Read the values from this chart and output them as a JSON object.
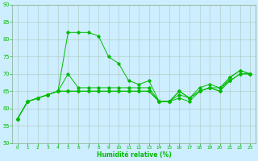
{
  "xlabel": "Humidité relative (%)",
  "background_color": "#cceeff",
  "grid_color": "#aaccaa",
  "line_color": "#00bb00",
  "xlim": [
    -0.5,
    23.5
  ],
  "ylim": [
    50,
    90
  ],
  "yticks": [
    50,
    55,
    60,
    65,
    70,
    75,
    80,
    85,
    90
  ],
  "xticks": [
    0,
    1,
    2,
    3,
    4,
    5,
    6,
    7,
    8,
    9,
    10,
    11,
    12,
    13,
    14,
    15,
    16,
    17,
    18,
    19,
    20,
    21,
    22,
    23
  ],
  "line1": [
    57,
    62,
    63,
    64,
    65,
    82,
    82,
    82,
    81,
    75,
    73,
    68,
    67,
    68,
    62,
    62,
    65,
    63,
    65,
    66,
    65,
    69,
    71,
    70
  ],
  "line2": [
    57,
    62,
    63,
    64,
    65,
    70,
    66,
    66,
    66,
    66,
    66,
    66,
    66,
    66,
    62,
    62,
    65,
    63,
    66,
    67,
    66,
    69,
    71,
    70
  ],
  "line3": [
    57,
    62,
    63,
    64,
    65,
    65,
    65,
    65,
    65,
    65,
    65,
    65,
    65,
    65,
    62,
    62,
    64,
    63,
    65,
    66,
    66,
    68,
    70,
    70
  ],
  "line4": [
    57,
    62,
    63,
    64,
    65,
    65,
    65,
    65,
    65,
    65,
    65,
    65,
    65,
    65,
    62,
    62,
    63,
    62,
    65,
    66,
    65,
    68,
    70,
    70
  ]
}
